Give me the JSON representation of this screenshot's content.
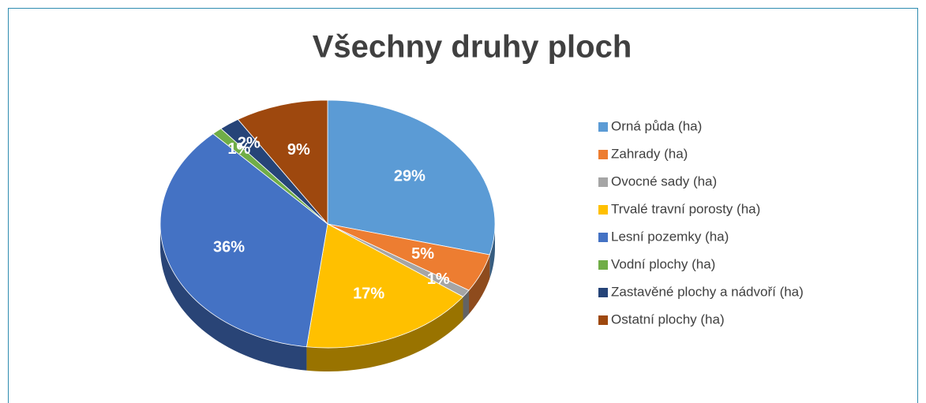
{
  "chart_data": {
    "type": "pie",
    "title": "Všechny druhy ploch",
    "categories": [
      "Orná půda (ha)",
      "Zahrady (ha)",
      "Ovocné sady (ha)",
      "Trvalé travní porosty (ha)",
      "Lesní pozemky (ha)",
      "Vodní plochy (ha)",
      "Zastavěné plochy a nádvoří (ha)",
      "Ostatní plochy (ha)"
    ],
    "values": [
      29,
      5,
      1,
      17,
      36,
      1,
      2,
      9
    ],
    "value_labels": [
      "29%",
      "5%",
      "1%",
      "17%",
      "36%",
      "1%",
      "2%",
      "9%"
    ],
    "colors": [
      "#5b9bd5",
      "#ed7d31",
      "#a5a5a5",
      "#ffc000",
      "#4472c4",
      "#70ad47",
      "#264478",
      "#9e480e"
    ],
    "legend": "right"
  }
}
